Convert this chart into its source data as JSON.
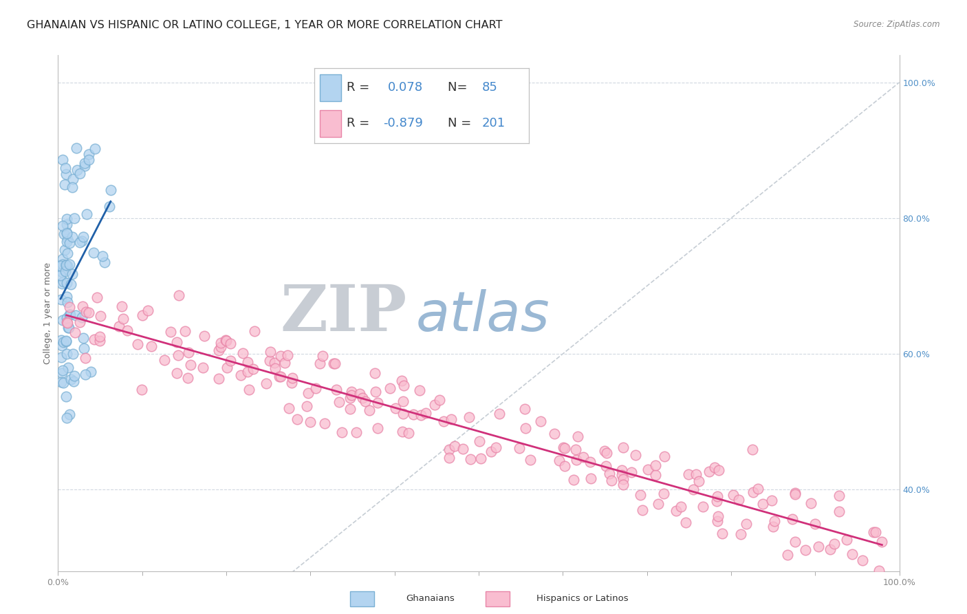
{
  "title": "GHANAIAN VS HISPANIC OR LATINO COLLEGE, 1 YEAR OR MORE CORRELATION CHART",
  "source": "Source: ZipAtlas.com",
  "ylabel": "College, 1 year or more",
  "xmin": 0.0,
  "xmax": 1.0,
  "ymin": 0.28,
  "ymax": 1.04,
  "yticks": [
    0.4,
    0.6,
    0.8,
    1.0
  ],
  "ytick_labels": [
    "40.0%",
    "60.0%",
    "80.0%",
    "100.0%"
  ],
  "blue_scatter_face": "#b3d4f0",
  "blue_scatter_edge": "#7ab0d4",
  "pink_scatter_face": "#f9bdd0",
  "pink_scatter_edge": "#e885a8",
  "blue_line_color": "#2060a8",
  "pink_line_color": "#d0307a",
  "ref_line_color": "#c0c8d0",
  "tick_color": "#888888",
  "right_tick_color": "#5090c8",
  "title_fontsize": 11.5,
  "tick_fontsize": 9,
  "ylabel_fontsize": 9,
  "legend_r_color": "#333333",
  "legend_n_color": "#4488cc",
  "legend_r_val_color": "#4488cc",
  "watermark_zip_color": "#c8cdd4",
  "watermark_atlas_color": "#9ab8d4",
  "bottom_blue": "#7ab0d4",
  "bottom_pink": "#e885a8"
}
